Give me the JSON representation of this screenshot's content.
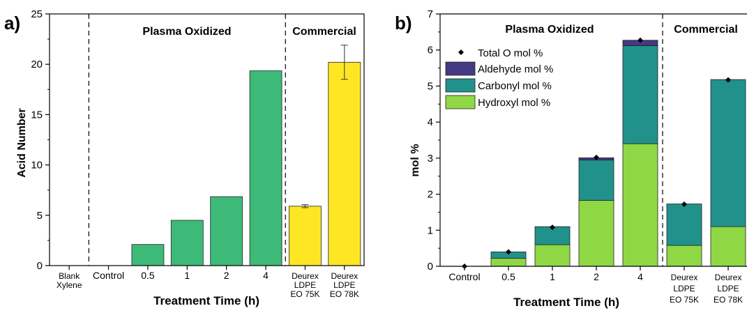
{
  "chart_data": [
    {
      "panel": "a)",
      "type": "bar",
      "xlabel": "Treatment Time (h)",
      "ylabel": "Acid Number",
      "ylim": [
        0,
        25
      ],
      "yticks": [
        "0",
        "5",
        "10",
        "15",
        "20",
        "25"
      ],
      "section_labels": [
        "Plasma Oxidized",
        "Commercial"
      ],
      "categories": [
        [
          "Blank",
          "Xylene"
        ],
        [
          "Control"
        ],
        [
          "0.5"
        ],
        [
          "1"
        ],
        [
          "2"
        ],
        [
          "4"
        ],
        [
          "Deurex",
          "LDPE",
          "EO 75K"
        ],
        [
          "Deurex",
          "LDPE",
          "EO 78K"
        ]
      ],
      "values": [
        0,
        0,
        2.1,
        4.5,
        6.85,
        19.35,
        5.9,
        20.2
      ],
      "errors": [
        null,
        null,
        null,
        null,
        null,
        null,
        0.15,
        1.7
      ],
      "bar_colors": [
        "#3dba78",
        "#3dba78",
        "#3dba78",
        "#3dba78",
        "#3dba78",
        "#3dba78",
        "#fde724",
        "#fde724"
      ]
    },
    {
      "panel": "b)",
      "type": "bar",
      "stacked": true,
      "xlabel": "Treatment Time (h)",
      "ylabel": "mol %",
      "ylim": [
        0,
        7
      ],
      "yticks": [
        "0",
        "1",
        "2",
        "3",
        "4",
        "5",
        "6",
        "7"
      ],
      "section_labels": [
        "Plasma Oxidized",
        "Commercial"
      ],
      "categories": [
        [
          "Control"
        ],
        [
          "0.5"
        ],
        [
          "1"
        ],
        [
          "2"
        ],
        [
          "4"
        ],
        [
          "Deurex",
          "LDPE",
          "EO 75K"
        ],
        [
          "Deurex",
          "LDPE",
          "EO 78K"
        ]
      ],
      "series": [
        {
          "name": "Hydroxyl mol %",
          "color": "#8fd744",
          "values": [
            0,
            0.22,
            0.6,
            1.83,
            3.4,
            0.58,
            1.1
          ]
        },
        {
          "name": "Carbonyl mol %",
          "color": "#21918c",
          "values": [
            0,
            0.18,
            0.5,
            1.12,
            2.72,
            1.15,
            4.08
          ]
        },
        {
          "name": "Aldehyde mol %",
          "color": "#443a83",
          "values": [
            0,
            0,
            0,
            0.06,
            0.15,
            0,
            0
          ]
        }
      ],
      "markers": {
        "name": "Total O mol %",
        "values": [
          0,
          0.4,
          1.08,
          3.02,
          6.27,
          1.72,
          5.17
        ]
      },
      "legend": [
        "Total O mol %",
        "Aldehyde mol %",
        "Carbonyl mol %",
        "Hydroxyl mol %"
      ]
    }
  ]
}
